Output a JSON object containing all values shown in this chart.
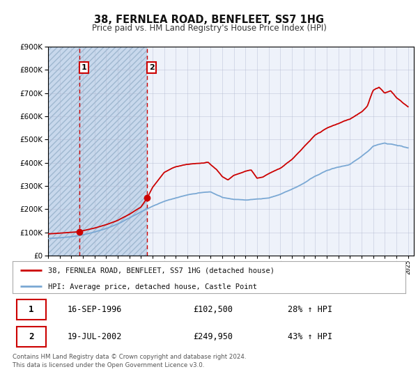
{
  "title": "38, FERNLEA ROAD, BENFLEET, SS7 1HG",
  "subtitle": "Price paid vs. HM Land Registry's House Price Index (HPI)",
  "legend_line1": "38, FERNLEA ROAD, BENFLEET, SS7 1HG (detached house)",
  "legend_line2": "HPI: Average price, detached house, Castle Point",
  "transaction1_label": "16-SEP-1996",
  "transaction1_price": "£102,500",
  "transaction1_hpi": "28% ↑ HPI",
  "transaction2_label": "19-JUL-2002",
  "transaction2_price": "£249,950",
  "transaction2_hpi": "43% ↑ HPI",
  "footer": "Contains HM Land Registry data © Crown copyright and database right 2024.\nThis data is licensed under the Open Government Licence v3.0.",
  "red_color": "#cc0000",
  "blue_color": "#7aa8d4",
  "background_color": "#ffffff",
  "plot_bg_color": "#eef2fa",
  "hatch_color": "#c8d8ec",
  "grid_color": "#b0b8d0",
  "ylim": [
    0,
    900000
  ],
  "xlim_start": 1994.0,
  "xlim_end": 2025.5,
  "transaction1_x": 1996.71,
  "transaction1_y": 102500,
  "transaction2_x": 2002.54,
  "transaction2_y": 249950
}
